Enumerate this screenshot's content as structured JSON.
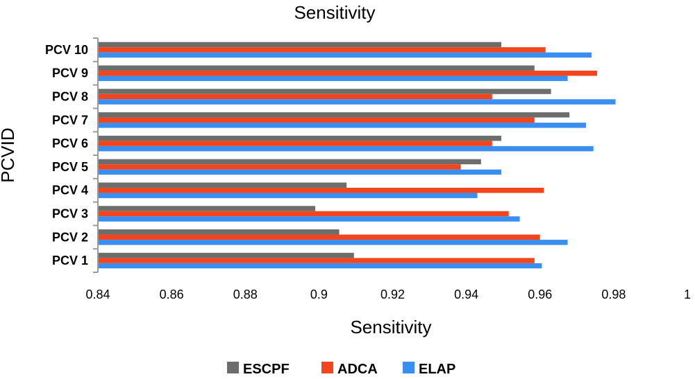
{
  "chart_data": {
    "type": "bar",
    "orientation": "horizontal",
    "title": "Sensitivity",
    "xlabel": "Sensitivity",
    "ylabel": "PCVID",
    "xlim": [
      0.84,
      1.0
    ],
    "xticks": [
      "0.84",
      "0.86",
      "0.88",
      "0.9",
      "0.92",
      "0.94",
      "0.96",
      "0.98",
      "1"
    ],
    "xtick_values": [
      0.84,
      0.86,
      0.88,
      0.9,
      0.92,
      0.94,
      0.96,
      0.98,
      1.0
    ],
    "categories": [
      "PCV 1",
      "PCV 2",
      "PCV 3",
      "PCV 4",
      "PCV 5",
      "PCV 6",
      "PCV 7",
      "PCV 8",
      "PCV 9",
      "PCV 10"
    ],
    "series": [
      {
        "name": "ESCPF",
        "color": "#6b6e6c",
        "values": [
          0.9095,
          0.9055,
          0.899,
          0.9075,
          0.944,
          0.9495,
          0.968,
          0.963,
          0.9585,
          0.9495
        ]
      },
      {
        "name": "ADCA",
        "color": "#f2441d",
        "values": [
          0.9585,
          0.96,
          0.9515,
          0.961,
          0.9385,
          0.947,
          0.9585,
          0.947,
          0.9755,
          0.9615
        ]
      },
      {
        "name": "ELAP",
        "color": "#3a8ef0",
        "values": [
          0.9605,
          0.9675,
          0.9545,
          0.943,
          0.9495,
          0.9745,
          0.9725,
          0.9805,
          0.9675,
          0.974
        ]
      }
    ],
    "legend_position": "bottom",
    "grid": false
  }
}
